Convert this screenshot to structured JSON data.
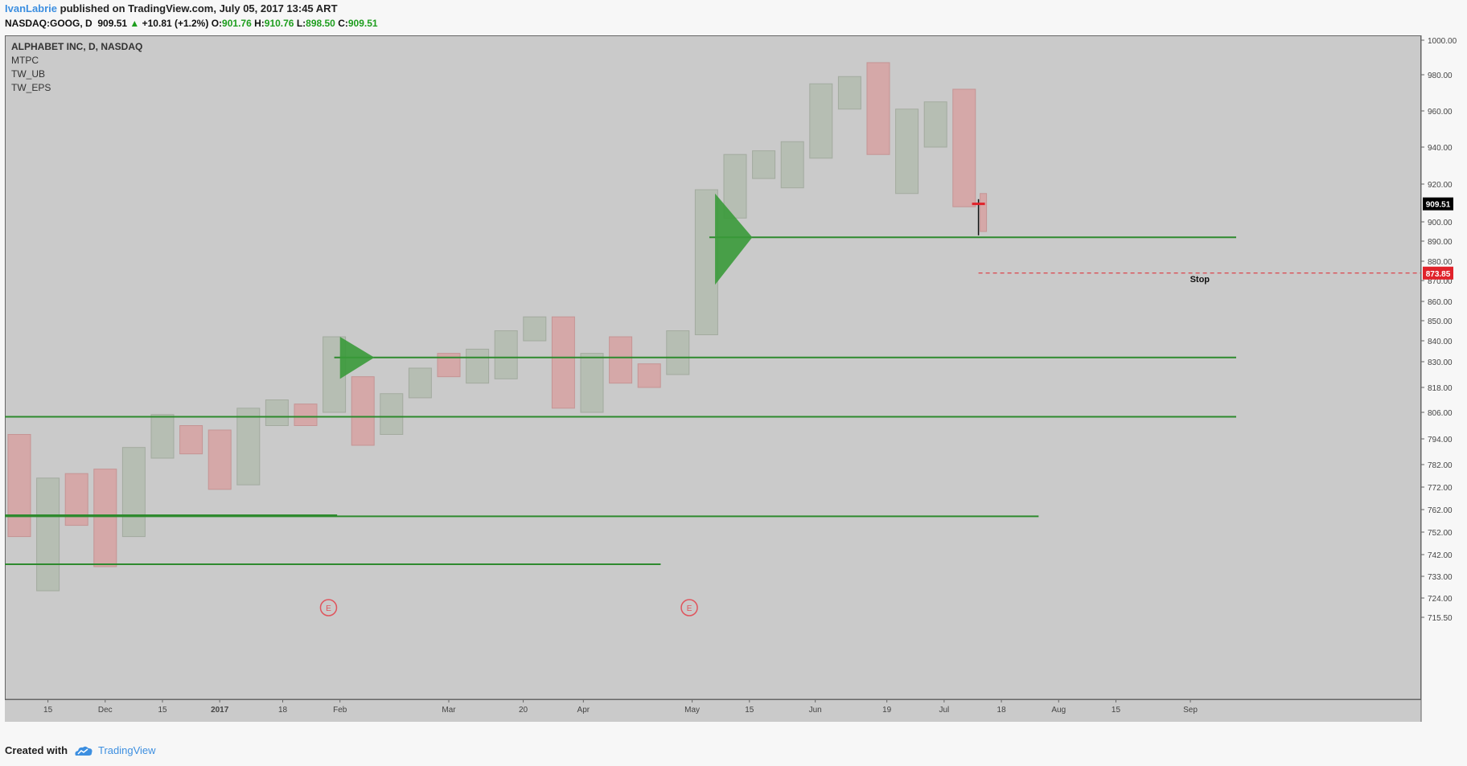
{
  "header": {
    "author": "IvanLabrie",
    "published_text": "published on TradingView.com, July 05, 2017 13:45 ART",
    "symbol": "NASDAQ:GOOG, D",
    "last": "909.51",
    "change": "+10.81 (+1.2%)",
    "o_label": "O:",
    "o_value": "901.76",
    "h_label": "H:",
    "h_value": "910.76",
    "l_label": "L:",
    "l_value": "898.50",
    "c_label": "C:",
    "c_value": "909.51"
  },
  "legend": [
    "ALPHABET INC, D, NASDAQ",
    "MTPC",
    "TW_UB",
    "TW_EPS"
  ],
  "footer": {
    "created_with": "Created with",
    "brand": "TradingView"
  },
  "colors": {
    "background": "#cacaca",
    "bull": "#b6beb3",
    "bear": "#d5a8a8",
    "levels": "#2e8a2e",
    "stop": "#e0222a"
  },
  "chart_data": {
    "type": "candlestick",
    "symbol": "GOOG",
    "interval": "D",
    "ylim": [
      715.5,
      1003
    ],
    "y_ticks": [
      1000,
      980,
      960,
      940,
      920,
      900,
      890,
      880,
      870,
      860,
      850,
      840,
      830,
      818,
      806,
      794,
      782,
      772,
      762,
      752,
      742,
      733,
      724,
      715.5
    ],
    "y_tick_labels": [
      "1000.00",
      "980.00",
      "960.00",
      "940.00",
      "920.00",
      "900.00",
      "890.00",
      "880.00",
      "870.00",
      "860.00",
      "850.00",
      "840.00",
      "830.00",
      "818.00",
      "806.00",
      "794.00",
      "782.00",
      "772.00",
      "762.00",
      "752.00",
      "742.00",
      "733.00",
      "724.00",
      "715.50"
    ],
    "x_ticks": [
      {
        "label": "15",
        "x": 1
      },
      {
        "label": "Dec",
        "x": 3
      },
      {
        "label": "15",
        "x": 5
      },
      {
        "label": "2017",
        "x": 7
      },
      {
        "label": "18",
        "x": 9.2
      },
      {
        "label": "Feb",
        "x": 11.2
      },
      {
        "label": "Mar",
        "x": 15
      },
      {
        "label": "20",
        "x": 17.6
      },
      {
        "label": "Apr",
        "x": 19.7
      },
      {
        "label": "May",
        "x": 23.5
      },
      {
        "label": "15",
        "x": 25.5
      },
      {
        "label": "Jun",
        "x": 27.8
      },
      {
        "label": "19",
        "x": 30.3
      },
      {
        "label": "Jul",
        "x": 32.3
      },
      {
        "label": "18",
        "x": 34.3
      },
      {
        "label": "Aug",
        "x": 36.3
      },
      {
        "label": "15",
        "x": 38.3
      },
      {
        "label": "Sep",
        "x": 40.9
      }
    ],
    "candles": [
      {
        "x": 0,
        "open": 750,
        "close": 796,
        "dir": "down"
      },
      {
        "x": 1,
        "open": 727,
        "close": 776,
        "dir": "up"
      },
      {
        "x": 2,
        "open": 755,
        "close": 778,
        "dir": "down"
      },
      {
        "x": 3,
        "open": 737,
        "close": 780,
        "dir": "down"
      },
      {
        "x": 4,
        "open": 750,
        "close": 790,
        "dir": "up"
      },
      {
        "x": 5,
        "open": 785,
        "close": 805,
        "dir": "up"
      },
      {
        "x": 6,
        "open": 787,
        "close": 800,
        "dir": "down"
      },
      {
        "x": 7,
        "open": 771,
        "close": 798,
        "dir": "down"
      },
      {
        "x": 8,
        "open": 773,
        "close": 808,
        "dir": "up"
      },
      {
        "x": 9,
        "open": 800,
        "close": 812,
        "dir": "up"
      },
      {
        "x": 10,
        "open": 800,
        "close": 810,
        "dir": "down"
      },
      {
        "x": 11,
        "open": 806,
        "close": 842,
        "dir": "up"
      },
      {
        "x": 12,
        "open": 791,
        "close": 823,
        "dir": "down"
      },
      {
        "x": 13,
        "open": 796,
        "close": 815,
        "dir": "up"
      },
      {
        "x": 14,
        "open": 813,
        "close": 827,
        "dir": "up"
      },
      {
        "x": 15,
        "open": 823,
        "close": 834,
        "dir": "down"
      },
      {
        "x": 16,
        "open": 820,
        "close": 836,
        "dir": "up"
      },
      {
        "x": 17,
        "open": 822,
        "close": 845,
        "dir": "up"
      },
      {
        "x": 18,
        "open": 840,
        "close": 852,
        "dir": "up"
      },
      {
        "x": 19,
        "open": 808,
        "close": 852,
        "dir": "down"
      },
      {
        "x": 20,
        "open": 806,
        "close": 834,
        "dir": "up"
      },
      {
        "x": 21,
        "open": 820,
        "close": 842,
        "dir": "down"
      },
      {
        "x": 22,
        "open": 818,
        "close": 829,
        "dir": "down"
      },
      {
        "x": 23,
        "open": 824,
        "close": 845,
        "dir": "up"
      },
      {
        "x": 24,
        "open": 843,
        "close": 917,
        "dir": "up"
      },
      {
        "x": 25,
        "open": 902,
        "close": 936,
        "dir": "up"
      },
      {
        "x": 26,
        "open": 923,
        "close": 938,
        "dir": "up"
      },
      {
        "x": 27,
        "open": 918,
        "close": 943,
        "dir": "up"
      },
      {
        "x": 28,
        "open": 934,
        "close": 975,
        "dir": "up"
      },
      {
        "x": 29,
        "open": 961,
        "close": 979,
        "dir": "up"
      },
      {
        "x": 30,
        "open": 936,
        "close": 987,
        "dir": "down"
      },
      {
        "x": 31,
        "open": 915,
        "close": 961,
        "dir": "up"
      },
      {
        "x": 32,
        "open": 940,
        "close": 965,
        "dir": "up"
      },
      {
        "x": 33,
        "open": 908,
        "close": 972,
        "dir": "down"
      },
      {
        "x": 33.5,
        "open": 895,
        "close": 915,
        "dir": "down"
      }
    ],
    "horizontal_levels": [
      {
        "price": 892,
        "x_start": 24.1,
        "x_end": 42.5
      },
      {
        "price": 832,
        "x_start": 11,
        "x_end": 42.5
      },
      {
        "price": 804,
        "x_start": -0.5,
        "x_end": 42.5
      },
      {
        "price": 759,
        "x_start": -0.5,
        "x_end": 35.6
      },
      {
        "price": 759.5,
        "x_start": -0.5,
        "x_end": 11.1
      },
      {
        "price": 738,
        "x_start": -0.5,
        "x_end": 22.4
      }
    ],
    "triangles": [
      {
        "points": [
          [
            11.2,
            842
          ],
          [
            12.4,
            832
          ],
          [
            11.2,
            822
          ]
        ]
      },
      {
        "points": [
          [
            24.3,
            915
          ],
          [
            25.6,
            892
          ],
          [
            24.3,
            868
          ]
        ]
      }
    ],
    "current_bar_marker": {
      "x": 33.5,
      "high": 912,
      "low": 893,
      "close": 909.5
    },
    "stop": {
      "price": 873.85,
      "label": "Stop",
      "price_label": "873.85",
      "x_start": 33.5
    },
    "last_price": {
      "price": 909.51,
      "label": "909.51"
    },
    "earnings_markers": [
      {
        "x": 10.8,
        "label": "E"
      },
      {
        "x": 23.4,
        "label": "E"
      }
    ]
  }
}
